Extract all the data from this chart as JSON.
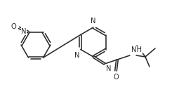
{
  "bg_color": "#ffffff",
  "line_color": "#2a2a2a",
  "line_width": 1.15,
  "font_size": 7.2,
  "font_family": "DejaVu Sans",
  "figsize": [
    2.65,
    1.34
  ],
  "dpi": 100,
  "xlim": [
    0,
    265
  ],
  "ylim": [
    0,
    134
  ]
}
